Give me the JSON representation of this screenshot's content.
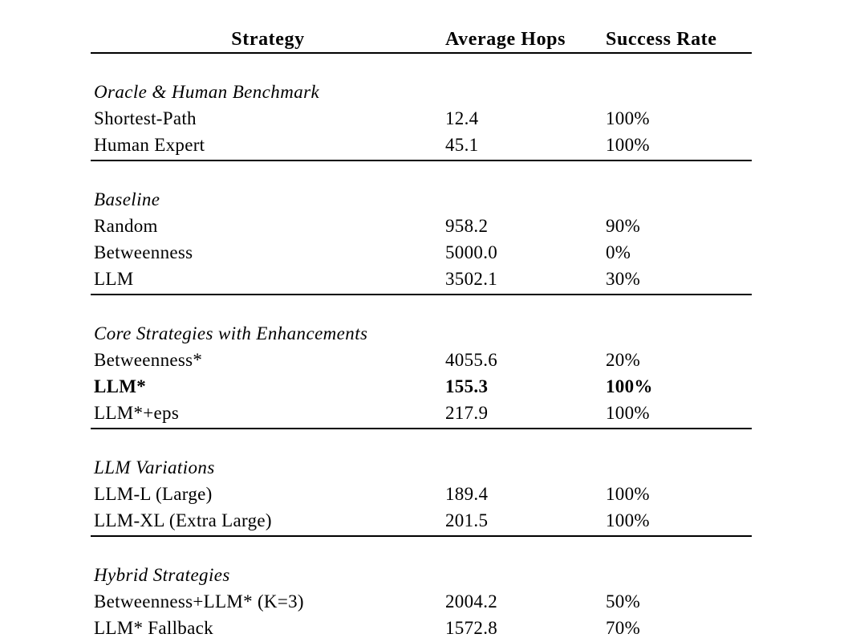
{
  "table": {
    "columns": [
      "Strategy",
      "Average Hops",
      "Success Rate"
    ],
    "sections": [
      {
        "header": "Oracle & Human Benchmark",
        "rows": [
          {
            "strategy": "Shortest-Path",
            "hops": "12.4",
            "success": "100%",
            "bold": false
          },
          {
            "strategy": "Human Expert",
            "hops": "45.1",
            "success": "100%",
            "bold": false
          }
        ]
      },
      {
        "header": "Baseline",
        "rows": [
          {
            "strategy": "Random",
            "hops": "958.2",
            "success": "90%",
            "bold": false
          },
          {
            "strategy": "Betweenness",
            "hops": "5000.0",
            "success": "0%",
            "bold": false
          },
          {
            "strategy": "LLM",
            "hops": "3502.1",
            "success": "30%",
            "bold": false
          }
        ]
      },
      {
        "header": "Core Strategies with Enhancements",
        "rows": [
          {
            "strategy": "Betweenness*",
            "hops": "4055.6",
            "success": "20%",
            "bold": false
          },
          {
            "strategy": "LLM*",
            "hops": "155.3",
            "success": "100%",
            "bold": true
          },
          {
            "strategy": "LLM*+eps",
            "hops": "217.9",
            "success": "100%",
            "bold": false
          }
        ]
      },
      {
        "header": "LLM Variations",
        "rows": [
          {
            "strategy": "LLM-L (Large)",
            "hops": "189.4",
            "success": "100%",
            "bold": false
          },
          {
            "strategy": "LLM-XL (Extra Large)",
            "hops": "201.5",
            "success": "100%",
            "bold": false
          }
        ]
      },
      {
        "header": "Hybrid Strategies",
        "rows": [
          {
            "strategy": "Betweenness+LLM* (K=3)",
            "hops": "2004.2",
            "success": "50%",
            "bold": false
          },
          {
            "strategy": "LLM* Fallback",
            "hops": "1572.8",
            "success": "70%",
            "bold": false
          }
        ]
      }
    ]
  }
}
